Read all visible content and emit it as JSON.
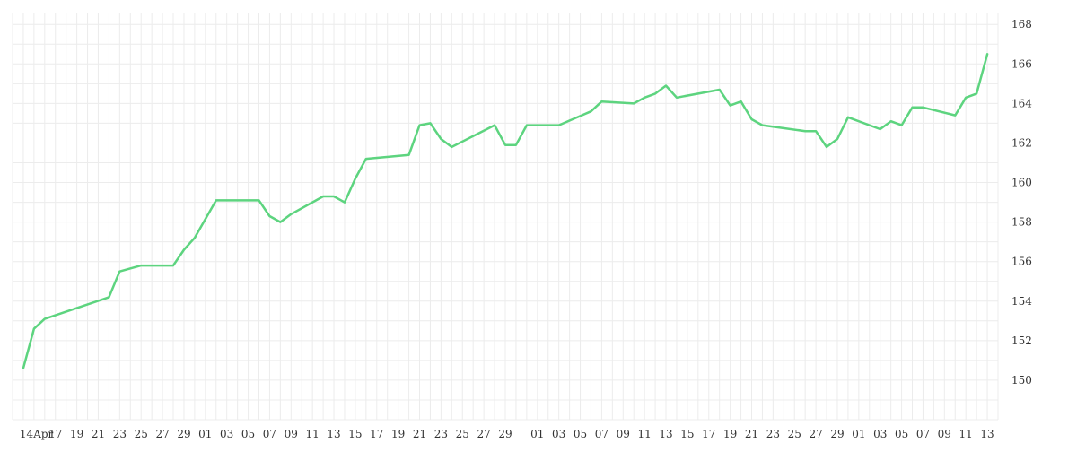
{
  "chart_data": {
    "type": "line",
    "title": "",
    "xlabel": "",
    "ylabel": "",
    "ylim": [
      148,
      168.6
    ],
    "y_ticks": [
      150,
      152,
      154,
      156,
      158,
      160,
      162,
      164,
      166,
      168
    ],
    "x_tick_labels": [
      "14Apr",
      "17",
      "19",
      "21",
      "23",
      "25",
      "27",
      "29",
      "01",
      "03",
      "05",
      "07",
      "09",
      "11",
      "13",
      "15",
      "17",
      "19",
      "21",
      "23",
      "25",
      "27",
      "29",
      "01",
      "03",
      "05",
      "07",
      "09",
      "11",
      "13",
      "15",
      "17",
      "19",
      "21",
      "23",
      "25",
      "27",
      "29",
      "01",
      "03",
      "05",
      "07",
      "09",
      "11",
      "13"
    ],
    "x_tick_dates": [
      "2025-04-14",
      "2025-04-17",
      "2025-04-19",
      "2025-04-21",
      "2025-04-23",
      "2025-04-25",
      "2025-04-27",
      "2025-04-29",
      "2025-05-01",
      "2025-05-03",
      "2025-05-05",
      "2025-05-07",
      "2025-05-09",
      "2025-05-11",
      "2025-05-13",
      "2025-05-15",
      "2025-05-17",
      "2025-05-19",
      "2025-05-21",
      "2025-05-23",
      "2025-05-25",
      "2025-05-27",
      "2025-05-29",
      "2025-06-01",
      "2025-06-03",
      "2025-06-05",
      "2025-06-07",
      "2025-06-09",
      "2025-06-11",
      "2025-06-13",
      "2025-06-15",
      "2025-06-17",
      "2025-06-19",
      "2025-06-21",
      "2025-06-23",
      "2025-06-25",
      "2025-06-27",
      "2025-06-29",
      "2025-07-01",
      "2025-07-03",
      "2025-07-05",
      "2025-07-07",
      "2025-07-09",
      "2025-07-11",
      "2025-07-13"
    ],
    "x_domain": [
      "2025-04-13",
      "2025-07-14"
    ],
    "grid": true,
    "line_color": "#5dd47f",
    "grid_color": "#ececec",
    "series": [
      {
        "name": "",
        "points": [
          [
            "2025-04-14",
            150.6
          ],
          [
            "2025-04-15",
            152.6
          ],
          [
            "2025-04-16",
            153.1
          ],
          [
            "2025-04-22",
            154.2
          ],
          [
            "2025-04-23",
            155.5
          ],
          [
            "2025-04-25",
            155.8
          ],
          [
            "2025-04-28",
            155.8
          ],
          [
            "2025-04-29",
            156.6
          ],
          [
            "2025-04-30",
            157.2
          ],
          [
            "2025-05-02",
            159.1
          ],
          [
            "2025-05-06",
            159.1
          ],
          [
            "2025-05-07",
            158.3
          ],
          [
            "2025-05-08",
            158.0
          ],
          [
            "2025-05-09",
            158.4
          ],
          [
            "2025-05-12",
            159.3
          ],
          [
            "2025-05-13",
            159.3
          ],
          [
            "2025-05-14",
            159.0
          ],
          [
            "2025-05-15",
            160.2
          ],
          [
            "2025-05-16",
            161.2
          ],
          [
            "2025-05-20",
            161.4
          ],
          [
            "2025-05-21",
            162.9
          ],
          [
            "2025-05-22",
            163.0
          ],
          [
            "2025-05-23",
            162.2
          ],
          [
            "2025-05-24",
            161.8
          ],
          [
            "2025-05-28",
            162.9
          ],
          [
            "2025-05-29",
            161.9
          ],
          [
            "2025-05-30",
            161.9
          ],
          [
            "2025-05-31",
            162.9
          ],
          [
            "2025-06-03",
            162.9
          ],
          [
            "2025-06-06",
            163.6
          ],
          [
            "2025-06-07",
            164.1
          ],
          [
            "2025-06-10",
            164.0
          ],
          [
            "2025-06-11",
            164.3
          ],
          [
            "2025-06-12",
            164.5
          ],
          [
            "2025-06-13",
            164.9
          ],
          [
            "2025-06-14",
            164.3
          ],
          [
            "2025-06-18",
            164.7
          ],
          [
            "2025-06-19",
            163.9
          ],
          [
            "2025-06-20",
            164.1
          ],
          [
            "2025-06-21",
            163.2
          ],
          [
            "2025-06-22",
            162.9
          ],
          [
            "2025-06-26",
            162.6
          ],
          [
            "2025-06-27",
            162.6
          ],
          [
            "2025-06-28",
            161.8
          ],
          [
            "2025-06-29",
            162.2
          ],
          [
            "2025-06-30",
            163.3
          ],
          [
            "2025-07-03",
            162.7
          ],
          [
            "2025-07-04",
            163.1
          ],
          [
            "2025-07-05",
            162.9
          ],
          [
            "2025-07-06",
            163.8
          ],
          [
            "2025-07-07",
            163.8
          ],
          [
            "2025-07-10",
            163.4
          ],
          [
            "2025-07-11",
            164.3
          ],
          [
            "2025-07-12",
            164.5
          ],
          [
            "2025-07-13",
            166.5
          ]
        ]
      }
    ]
  }
}
